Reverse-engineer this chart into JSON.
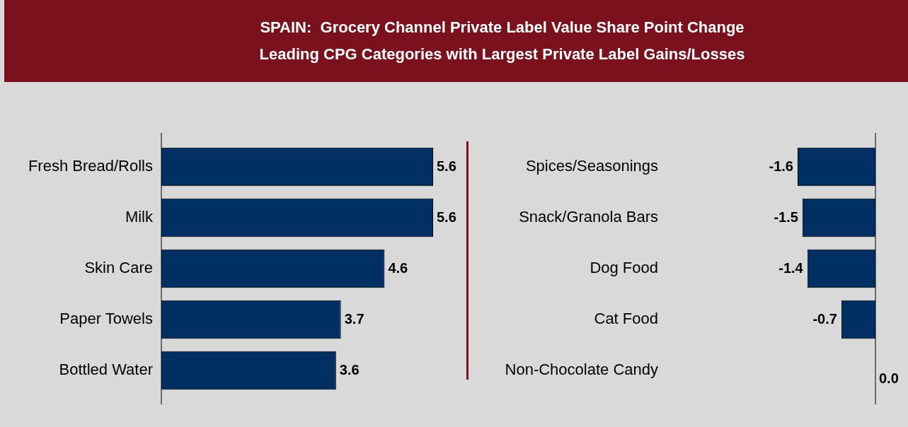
{
  "chart_data": [
    {
      "type": "bar",
      "orientation": "horizontal",
      "title": "SPAIN:  Grocery Channel Private Label Value Share Point Change",
      "subtitle": "Leading CPG Categories with Largest Private Label Gains/Losses",
      "categories": [
        "Fresh Bread/Rolls",
        "Milk",
        "Skin Care",
        "Paper Towels",
        "Bottled Water"
      ],
      "values": [
        5.6,
        5.6,
        4.6,
        3.7,
        3.6
      ],
      "value_labels": [
        "5.6",
        "5.6",
        "4.6",
        "3.7",
        "3.6"
      ],
      "color": "#003063"
    },
    {
      "type": "bar",
      "orientation": "horizontal",
      "categories": [
        "Spices/Seasonings",
        "Snack/Granola Bars",
        "Dog Food",
        "Cat Food",
        "Non-Chocolate Candy"
      ],
      "values": [
        -1.6,
        -1.5,
        -1.4,
        -0.7,
        0.0
      ],
      "value_labels": [
        "-1.6",
        "-1.5",
        "-1.4",
        "-0.7",
        "0.0"
      ],
      "color": "#003063"
    }
  ]
}
